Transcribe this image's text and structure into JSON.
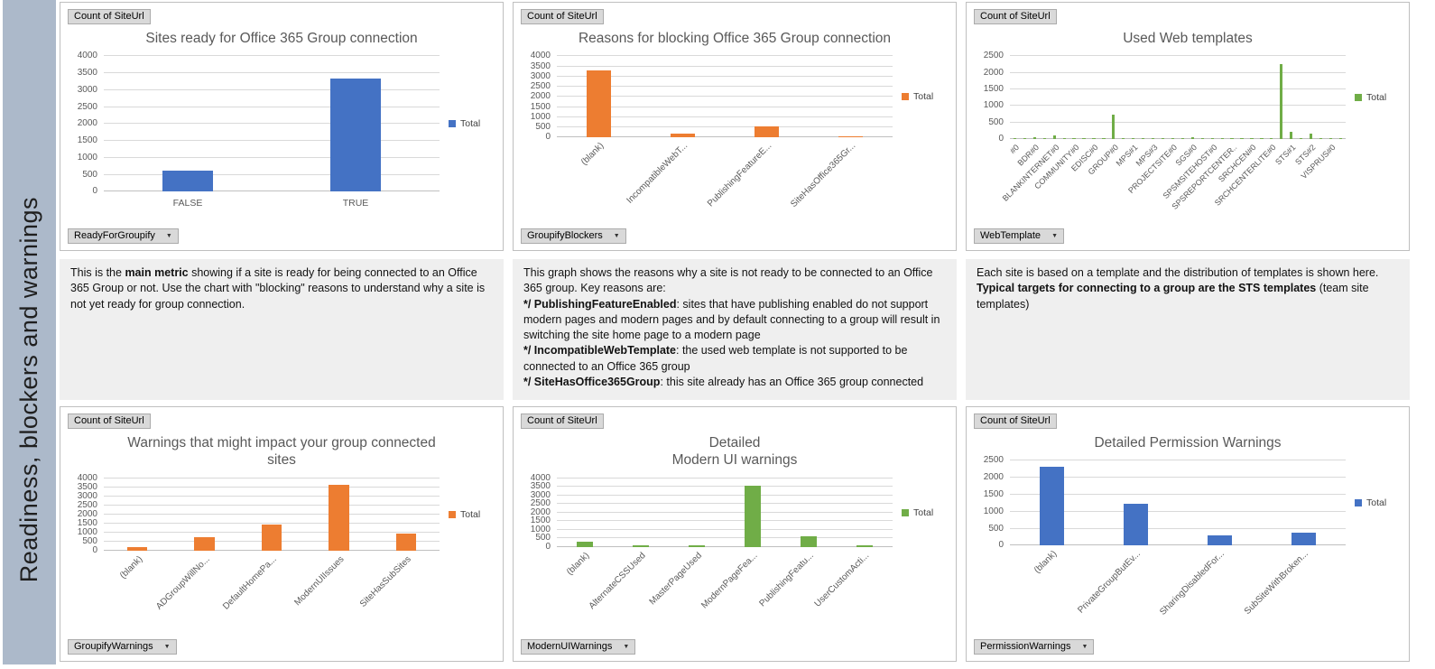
{
  "sidebar": {
    "label": "Readiness, blockers and warnings",
    "bg": "#ACB9CA"
  },
  "pivot_value_button": "Count of SiteUrl",
  "colors": {
    "series_blue": "#4472C4",
    "series_orange": "#ED7D31",
    "series_green": "#70AD47",
    "sidebar_bg": "#ACB9CA",
    "gridline": "#D9D9D9"
  },
  "chart_data": [
    {
      "type": "bar",
      "title": "Sites ready for Office 365 Group connection",
      "title_lines": [
        "Sites ready for Office 365 Group connection"
      ],
      "categories": [
        "FALSE",
        "TRUE"
      ],
      "values": [
        620,
        3340
      ],
      "legend": "Total",
      "legend_position": "right",
      "color": "#4472C4",
      "ylim": [
        0,
        4000
      ],
      "ytick_step": 500,
      "grid": true,
      "value_button": "Count of SiteUrl",
      "filter_button": "ReadyForGroupify"
    },
    {
      "type": "bar",
      "title": "Reasons for blocking Office 365 Group connection",
      "title_lines": [
        "Reasons for blocking Office 365 Group connection"
      ],
      "categories": [
        "(blank)",
        "IncompatibleWebT...",
        "PublishingFeatureE...",
        "SiteHasOffice365Gr..."
      ],
      "values": [
        3320,
        180,
        570,
        60
      ],
      "legend": "Total",
      "legend_position": "right",
      "color": "#ED7D31",
      "ylim": [
        0,
        4000
      ],
      "ytick_step": 500,
      "grid": true,
      "value_button": "Count of SiteUrl",
      "filter_button": "GroupifyBlockers"
    },
    {
      "type": "bar",
      "title": "Used Web templates",
      "title_lines": [
        "Used Web templates"
      ],
      "categories": [
        "#0",
        "",
        "BDR#0",
        "",
        "BLANKINTERNET#0",
        "",
        "COMMUNITY#0",
        "",
        "EDISC#0",
        "",
        "GROUP#0",
        "",
        "MPS#1",
        "",
        "MPS#3",
        "",
        "PROJECTSITE#0",
        "",
        "SGS#0",
        "",
        "SPSMSITEHOST#0",
        "",
        "SPSREPORTCENTER..",
        "",
        "SRCHCEN#0",
        "",
        "SRCHCENTERLITE#0",
        "",
        "STS#1",
        "",
        "STS#2",
        "",
        "VISPRUS#0",
        ""
      ],
      "values": [
        30,
        25,
        60,
        25,
        110,
        25,
        30,
        25,
        30,
        25,
        750,
        25,
        30,
        25,
        30,
        25,
        30,
        25,
        60,
        25,
        30,
        25,
        30,
        25,
        30,
        25,
        30,
        2270,
        230,
        25,
        170,
        25,
        30,
        25
      ],
      "legend": "Total",
      "legend_position": "right",
      "color": "#70AD47",
      "ylim": [
        0,
        2500
      ],
      "ytick_step": 500,
      "grid": true,
      "value_button": "Count of SiteUrl",
      "filter_button": "WebTemplate"
    },
    {
      "type": "bar",
      "title": "Warnings that might impact your group connected sites",
      "title_lines": [
        "Warnings that might impact your group connected",
        "sites"
      ],
      "categories": [
        "(blank)",
        "ADGroupWillNo...",
        "DefaultHomePa...",
        "ModernUIIssues",
        "SiteHasSubSites"
      ],
      "values": [
        170,
        740,
        1440,
        3650,
        960
      ],
      "legend": "Total",
      "legend_position": "right",
      "color": "#ED7D31",
      "ylim": [
        0,
        4000
      ],
      "ytick_step": 500,
      "grid": true,
      "value_button": "Count of SiteUrl",
      "filter_button": "GroupifyWarnings"
    },
    {
      "type": "bar",
      "title": "Detailed Modern UI warnings",
      "title_lines": [
        "Detailed",
        "Modern UI warnings"
      ],
      "categories": [
        "(blank)",
        "AlternateCSSUsed",
        "MasterPageUsed",
        "ModernPageFea...",
        "PublishingFeatu...",
        "UserCustomActi..."
      ],
      "values": [
        300,
        70,
        70,
        3590,
        640,
        70
      ],
      "legend": "Total",
      "legend_position": "right",
      "color": "#70AD47",
      "ylim": [
        0,
        4000
      ],
      "ytick_step": 500,
      "grid": true,
      "value_button": "Count of SiteUrl",
      "filter_button": "ModernUIWarnings"
    },
    {
      "type": "bar",
      "title": "Detailed Permission Warnings",
      "title_lines": [
        "Detailed Permission Warnings"
      ],
      "categories": [
        "(blank)",
        "PrivateGroupButEv...",
        "SharingDisabledFor...",
        "SubSiteWithBroken..."
      ],
      "values": [
        2320,
        1230,
        290,
        390
      ],
      "legend": "Total",
      "legend_position": "right",
      "color": "#4472C4",
      "ylim": [
        0,
        2500
      ],
      "ytick_step": 500,
      "grid": true,
      "value_button": "Count of SiteUrl",
      "filter_button": "PermissionWarnings"
    }
  ],
  "notes": [
    {
      "lines": [
        [
          {
            "t": "This is the "
          },
          {
            "t": "main metric",
            "b": true
          },
          {
            "t": " showing if a site is ready for being connected to an Office 365 Group or not. Use the chart with \"blocking\" reasons to understand why a site is not yet ready for group connection."
          }
        ]
      ]
    },
    {
      "lines": [
        [
          {
            "t": "This graph shows the reasons why a site is not ready to be connected to an Office 365 group. Key reasons are:"
          }
        ],
        [
          {
            "t": "*/ PublishingFeatureEnabled",
            "b": true
          },
          {
            "t": ": sites that have publishing enabled do not support modern pages and modern pages and by default connecting to a group will result in switching the site home page to a modern page"
          }
        ],
        [
          {
            "t": "*/ IncompatibleWebTemplate",
            "b": true
          },
          {
            "t": ": the used web template is not supported to be connected to an Office 365 group"
          }
        ],
        [
          {
            "t": "*/ SiteHasOffice365Group",
            "b": true
          },
          {
            "t": ": this site already has an Office 365 group connected"
          }
        ]
      ]
    },
    {
      "lines": [
        [
          {
            "t": "Each site is based on a template and the distribution of templates is shown here. "
          },
          {
            "t": "Typical targets for connecting to a group are the STS templates",
            "b": true
          },
          {
            "t": " (team site templates)"
          }
        ]
      ]
    }
  ]
}
